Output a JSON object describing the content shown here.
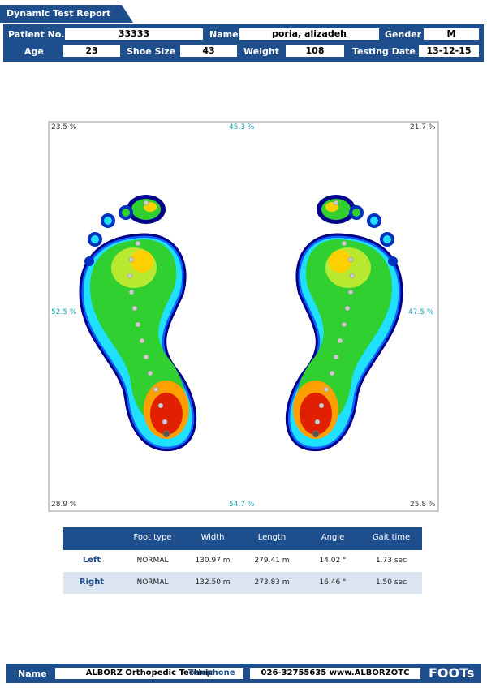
{
  "header": {
    "title": "Dynamic Test Report",
    "row1": [
      {
        "label": "Patient No.",
        "value": "33333"
      },
      {
        "label": "Name",
        "value": "poria, alizadeh"
      },
      {
        "label": "Gender",
        "value": "M"
      }
    ],
    "row2": [
      {
        "label": "Age",
        "value": "23"
      },
      {
        "label": "Shoe Size",
        "value": "43"
      },
      {
        "label": "Weight",
        "value": "108"
      },
      {
        "label": "Testing Date",
        "value": "13-12-15"
      }
    ]
  },
  "plot": {
    "top_left": "23.5 %",
    "top_center": "45.3 %",
    "top_right": "21.7 %",
    "middle_left": "52.5 %",
    "middle_right": "47.5 %",
    "bottom_left": "28.9 %",
    "bottom_center": "54.7 %",
    "bottom_right": "25.8 %"
  },
  "table": {
    "columns": [
      "Foot type",
      "Width",
      "Length",
      "Angle",
      "Gait time"
    ],
    "rows": [
      {
        "side": "Left",
        "cells": [
          "NORMAL",
          "130.97 m",
          "279.41 m",
          "14.02 °",
          "1.73 sec"
        ]
      },
      {
        "side": "Right",
        "cells": [
          "NORMAL",
          "132.50 m",
          "273.83 m",
          "16.46 °",
          "1.50 sec"
        ]
      }
    ]
  },
  "footer": {
    "name_label": "Name",
    "name": "ALBORZ Orthopedic Technic",
    "phone_label": "Telephone",
    "phone": "026-32755635 www.ALBORZOTC",
    "logo": "FOOTs"
  }
}
